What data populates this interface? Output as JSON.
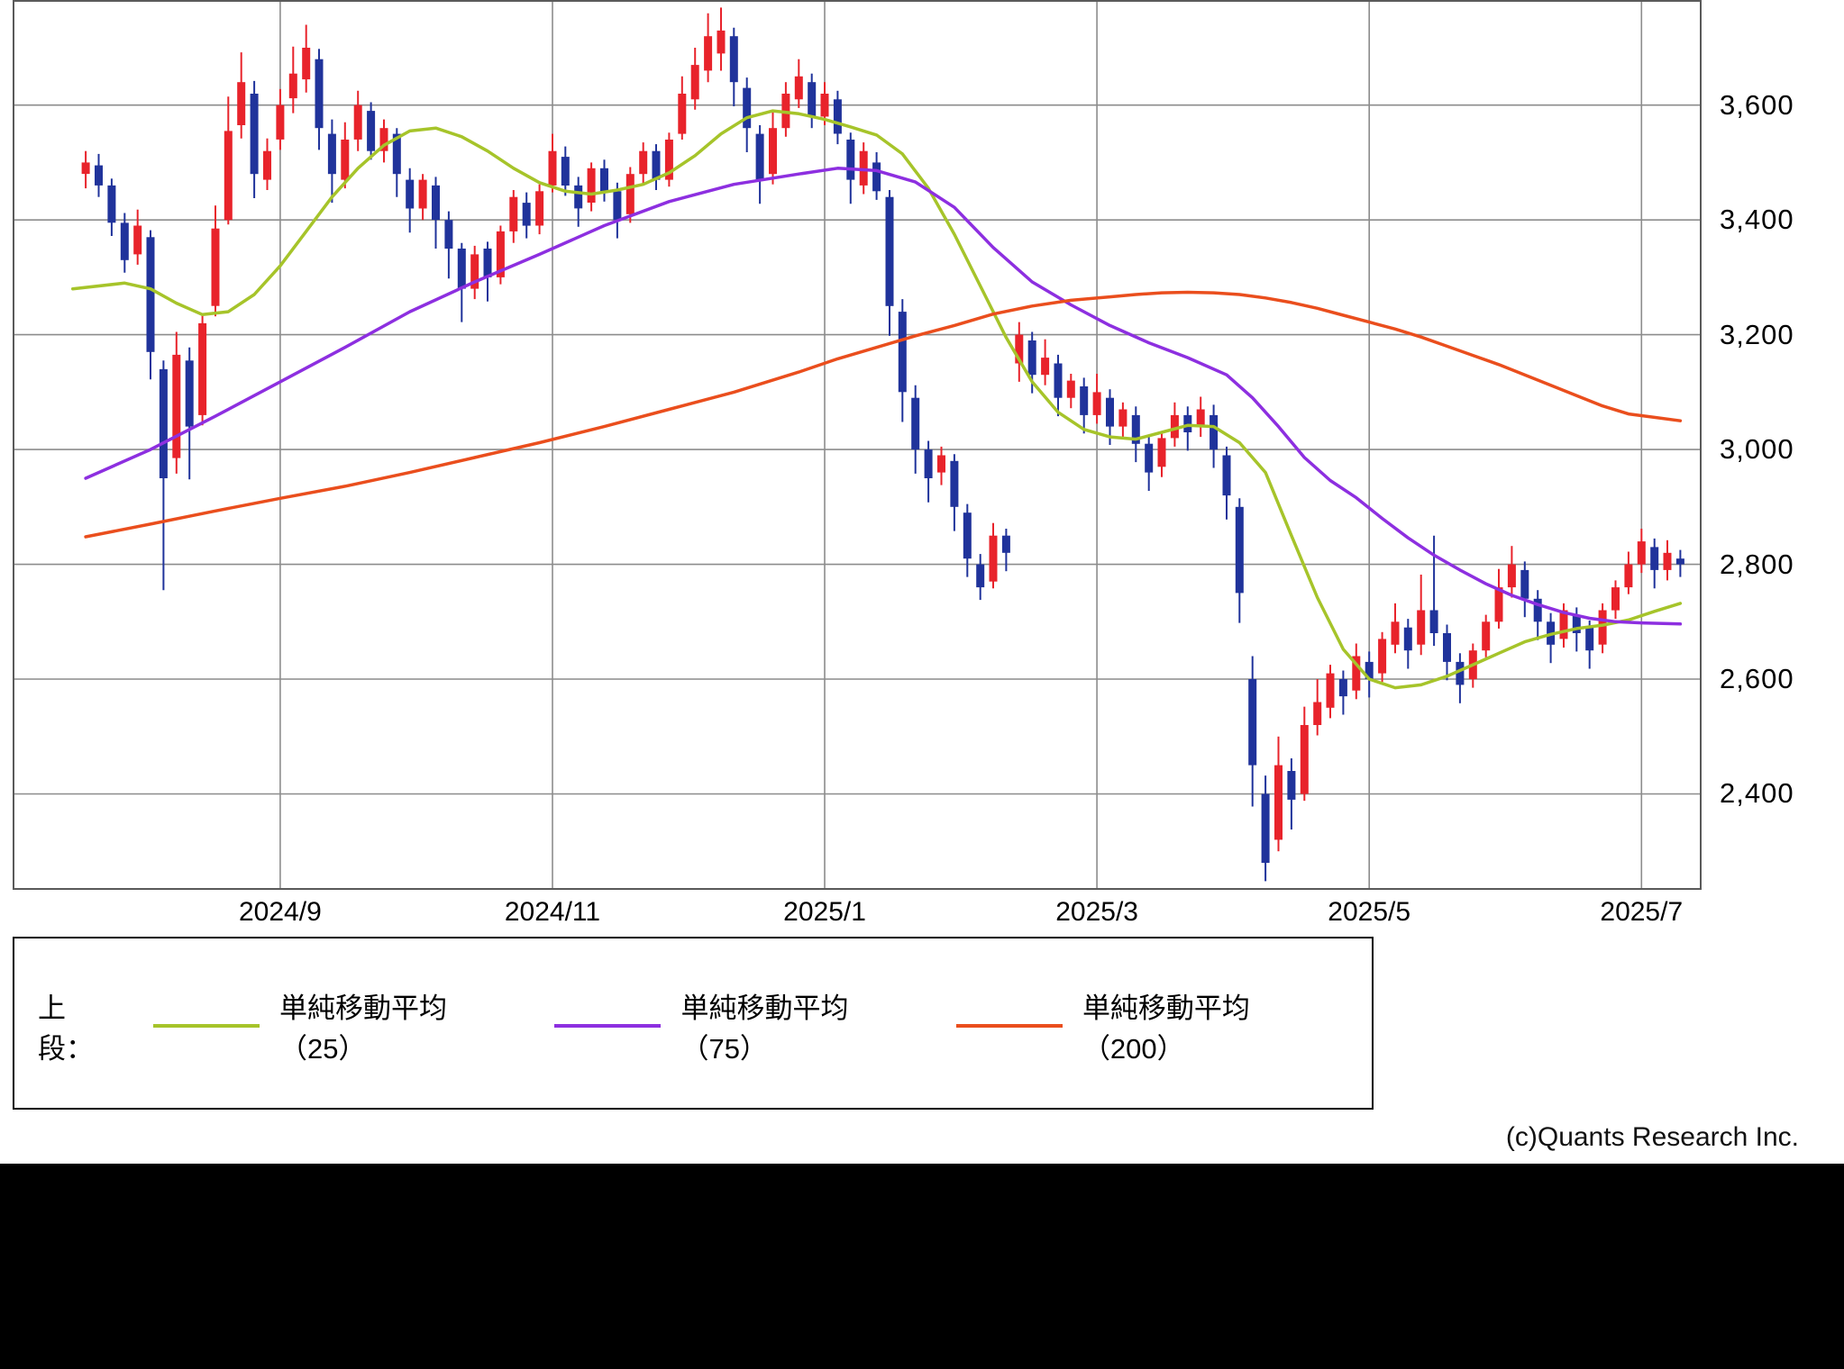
{
  "page": {
    "copyright": "(c)Quants Research Inc."
  },
  "legend": {
    "prefix": "上段："
  },
  "chart_data": {
    "type": "candlestick",
    "title": "",
    "x_axis": {
      "tick_labels": [
        "2024/9",
        "2024/11",
        "2025/1",
        "2025/3",
        "2025/5",
        "2025/7"
      ],
      "tick_indices": [
        20,
        41,
        62,
        83,
        104,
        125
      ]
    },
    "y_axis": {
      "tick_labels": [
        "3,600",
        "3,400",
        "3,200",
        "3,000",
        "2,800",
        "2,600",
        "2,400"
      ],
      "tick_values": [
        3600,
        3400,
        3200,
        3000,
        2800,
        2600,
        2400
      ],
      "range": [
        2236,
        3780
      ]
    },
    "n_slots": 130,
    "start_index": 5,
    "colors": {
      "up": "#e8232b",
      "down": "#20339b",
      "grid": "#8c8c8c",
      "border": "#5a5a5a"
    },
    "candles": [
      [
        3480,
        3520,
        3455,
        3500
      ],
      [
        3495,
        3515,
        3440,
        3460
      ],
      [
        3460,
        3472,
        3372,
        3395
      ],
      [
        3395,
        3412,
        3308,
        3330
      ],
      [
        3340,
        3418,
        3322,
        3390
      ],
      [
        3370,
        3382,
        3122,
        3170
      ],
      [
        3140,
        3155,
        2755,
        2950
      ],
      [
        2985,
        3205,
        2958,
        3165
      ],
      [
        3155,
        3178,
        2948,
        3040
      ],
      [
        3060,
        3235,
        3042,
        3220
      ],
      [
        3250,
        3425,
        3232,
        3385
      ],
      [
        3400,
        3615,
        3392,
        3555
      ],
      [
        3565,
        3692,
        3542,
        3640
      ],
      [
        3620,
        3642,
        3438,
        3480
      ],
      [
        3470,
        3542,
        3452,
        3520
      ],
      [
        3540,
        3628,
        3522,
        3600
      ],
      [
        3612,
        3702,
        3586,
        3655
      ],
      [
        3645,
        3740,
        3622,
        3700
      ],
      [
        3680,
        3698,
        3522,
        3560
      ],
      [
        3550,
        3575,
        3430,
        3480
      ],
      [
        3470,
        3570,
        3455,
        3540
      ],
      [
        3540,
        3625,
        3520,
        3600
      ],
      [
        3590,
        3605,
        3505,
        3520
      ],
      [
        3520,
        3575,
        3500,
        3560
      ],
      [
        3550,
        3560,
        3440,
        3480
      ],
      [
        3470,
        3490,
        3378,
        3420
      ],
      [
        3420,
        3480,
        3400,
        3470
      ],
      [
        3460,
        3475,
        3350,
        3400
      ],
      [
        3400,
        3415,
        3298,
        3350
      ],
      [
        3350,
        3360,
        3222,
        3280
      ],
      [
        3280,
        3355,
        3262,
        3340
      ],
      [
        3350,
        3362,
        3258,
        3300
      ],
      [
        3300,
        3390,
        3288,
        3380
      ],
      [
        3380,
        3452,
        3360,
        3440
      ],
      [
        3430,
        3448,
        3368,
        3390
      ],
      [
        3390,
        3462,
        3375,
        3450
      ],
      [
        3460,
        3550,
        3448,
        3520
      ],
      [
        3510,
        3528,
        3442,
        3460
      ],
      [
        3460,
        3475,
        3388,
        3420
      ],
      [
        3430,
        3500,
        3415,
        3490
      ],
      [
        3490,
        3505,
        3432,
        3450
      ],
      [
        3450,
        3465,
        3368,
        3400
      ],
      [
        3410,
        3492,
        3395,
        3480
      ],
      [
        3480,
        3535,
        3462,
        3520
      ],
      [
        3520,
        3532,
        3452,
        3470
      ],
      [
        3470,
        3552,
        3458,
        3540
      ],
      [
        3550,
        3650,
        3540,
        3620
      ],
      [
        3610,
        3700,
        3592,
        3670
      ],
      [
        3660,
        3760,
        3640,
        3720
      ],
      [
        3690,
        3770,
        3660,
        3730
      ],
      [
        3720,
        3735,
        3598,
        3640
      ],
      [
        3630,
        3648,
        3518,
        3560
      ],
      [
        3550,
        3565,
        3428,
        3470
      ],
      [
        3480,
        3592,
        3462,
        3560
      ],
      [
        3560,
        3640,
        3545,
        3620
      ],
      [
        3610,
        3680,
        3595,
        3650
      ],
      [
        3640,
        3655,
        3560,
        3580
      ],
      [
        3580,
        3640,
        3565,
        3620
      ],
      [
        3610,
        3625,
        3532,
        3550
      ],
      [
        3540,
        3552,
        3428,
        3470
      ],
      [
        3460,
        3535,
        3445,
        3520
      ],
      [
        3500,
        3518,
        3435,
        3450
      ],
      [
        3440,
        3452,
        3198,
        3250
      ],
      [
        3240,
        3262,
        3048,
        3100
      ],
      [
        3090,
        3112,
        2958,
        3000
      ],
      [
        3000,
        3015,
        2908,
        2950
      ],
      [
        2960,
        3005,
        2938,
        2990
      ],
      [
        2980,
        2992,
        2858,
        2900
      ],
      [
        2890,
        2905,
        2778,
        2810
      ],
      [
        2800,
        2818,
        2738,
        2760
      ],
      [
        2770,
        2872,
        2758,
        2850
      ],
      [
        2850,
        2862,
        2788,
        2820
      ],
      [
        3150,
        3222,
        3118,
        3200
      ],
      [
        3190,
        3205,
        3098,
        3130
      ],
      [
        3130,
        3192,
        3112,
        3160
      ],
      [
        3150,
        3165,
        3058,
        3090
      ],
      [
        3090,
        3132,
        3072,
        3120
      ],
      [
        3110,
        3125,
        3028,
        3060
      ],
      [
        3060,
        3132,
        3045,
        3100
      ],
      [
        3090,
        3105,
        3008,
        3040
      ],
      [
        3040,
        3082,
        3022,
        3070
      ],
      [
        3060,
        3075,
        2978,
        3010
      ],
      [
        3010,
        3025,
        2928,
        2960
      ],
      [
        2970,
        3032,
        2952,
        3020
      ],
      [
        3020,
        3082,
        3005,
        3060
      ],
      [
        3060,
        3075,
        2998,
        3030
      ],
      [
        3040,
        3092,
        3022,
        3070
      ],
      [
        3060,
        3078,
        2968,
        3000
      ],
      [
        2990,
        3005,
        2878,
        2920
      ],
      [
        2900,
        2915,
        2698,
        2750
      ],
      [
        2600,
        2640,
        2378,
        2450
      ],
      [
        2400,
        2432,
        2248,
        2280
      ],
      [
        2320,
        2500,
        2300,
        2450
      ],
      [
        2440,
        2462,
        2338,
        2390
      ],
      [
        2400,
        2552,
        2388,
        2520
      ],
      [
        2520,
        2600,
        2502,
        2560
      ],
      [
        2550,
        2625,
        2532,
        2610
      ],
      [
        2600,
        2615,
        2538,
        2570
      ],
      [
        2580,
        2662,
        2565,
        2640
      ],
      [
        2630,
        2648,
        2568,
        2600
      ],
      [
        2610,
        2682,
        2595,
        2670
      ],
      [
        2660,
        2732,
        2645,
        2700
      ],
      [
        2690,
        2705,
        2618,
        2650
      ],
      [
        2660,
        2782,
        2642,
        2720
      ],
      [
        2720,
        2850,
        2658,
        2680
      ],
      [
        2680,
        2695,
        2598,
        2630
      ],
      [
        2630,
        2645,
        2558,
        2590
      ],
      [
        2600,
        2662,
        2585,
        2650
      ],
      [
        2650,
        2712,
        2638,
        2700
      ],
      [
        2700,
        2792,
        2688,
        2760
      ],
      [
        2760,
        2832,
        2742,
        2800
      ],
      [
        2790,
        2805,
        2708,
        2740
      ],
      [
        2740,
        2755,
        2668,
        2700
      ],
      [
        2700,
        2715,
        2628,
        2660
      ],
      [
        2670,
        2732,
        2655,
        2720
      ],
      [
        2710,
        2725,
        2648,
        2680
      ],
      [
        2690,
        2702,
        2618,
        2650
      ],
      [
        2660,
        2732,
        2645,
        2720
      ],
      [
        2720,
        2772,
        2705,
        2760
      ],
      [
        2760,
        2822,
        2748,
        2800
      ],
      [
        2800,
        2862,
        2785,
        2840
      ],
      [
        2830,
        2845,
        2758,
        2790
      ],
      [
        2790,
        2842,
        2772,
        2820
      ],
      [
        2810,
        2825,
        2778,
        2800
      ]
    ],
    "series": [
      {
        "id": "sma25",
        "name": "単純移動平均（25）",
        "color": "#a6c42a",
        "points": [
          [
            4,
            3280
          ],
          [
            8,
            3290
          ],
          [
            10,
            3280
          ],
          [
            12,
            3255
          ],
          [
            14,
            3235
          ],
          [
            16,
            3240
          ],
          [
            18,
            3270
          ],
          [
            20,
            3320
          ],
          [
            22,
            3380
          ],
          [
            24,
            3440
          ],
          [
            26,
            3490
          ],
          [
            28,
            3530
          ],
          [
            30,
            3555
          ],
          [
            32,
            3560
          ],
          [
            34,
            3545
          ],
          [
            36,
            3520
          ],
          [
            38,
            3490
          ],
          [
            40,
            3465
          ],
          [
            42,
            3450
          ],
          [
            44,
            3445
          ],
          [
            46,
            3452
          ],
          [
            48,
            3462
          ],
          [
            50,
            3482
          ],
          [
            52,
            3512
          ],
          [
            54,
            3550
          ],
          [
            56,
            3578
          ],
          [
            58,
            3590
          ],
          [
            60,
            3585
          ],
          [
            62,
            3575
          ],
          [
            64,
            3562
          ],
          [
            66,
            3548
          ],
          [
            68,
            3515
          ],
          [
            70,
            3455
          ],
          [
            72,
            3375
          ],
          [
            74,
            3285
          ],
          [
            76,
            3195
          ],
          [
            78,
            3118
          ],
          [
            80,
            3065
          ],
          [
            82,
            3035
          ],
          [
            84,
            3022
          ],
          [
            86,
            3018
          ],
          [
            88,
            3030
          ],
          [
            90,
            3042
          ],
          [
            92,
            3040
          ],
          [
            94,
            3012
          ],
          [
            96,
            2960
          ],
          [
            98,
            2850
          ],
          [
            100,
            2742
          ],
          [
            102,
            2652
          ],
          [
            104,
            2600
          ],
          [
            106,
            2585
          ],
          [
            108,
            2590
          ],
          [
            110,
            2605
          ],
          [
            112,
            2625
          ],
          [
            114,
            2645
          ],
          [
            116,
            2665
          ],
          [
            118,
            2678
          ],
          [
            120,
            2688
          ],
          [
            122,
            2694
          ],
          [
            124,
            2703
          ],
          [
            126,
            2718
          ],
          [
            128,
            2732
          ]
        ]
      },
      {
        "id": "sma75",
        "name": "単純移動平均（75）",
        "color": "#8d2fe0",
        "points": [
          [
            5,
            2950
          ],
          [
            10,
            3000
          ],
          [
            15,
            3058
          ],
          [
            20,
            3118
          ],
          [
            25,
            3178
          ],
          [
            30,
            3240
          ],
          [
            35,
            3292
          ],
          [
            40,
            3340
          ],
          [
            45,
            3390
          ],
          [
            50,
            3432
          ],
          [
            55,
            3462
          ],
          [
            60,
            3480
          ],
          [
            63,
            3490
          ],
          [
            66,
            3486
          ],
          [
            69,
            3466
          ],
          [
            72,
            3422
          ],
          [
            75,
            3352
          ],
          [
            78,
            3292
          ],
          [
            81,
            3252
          ],
          [
            84,
            3216
          ],
          [
            87,
            3186
          ],
          [
            90,
            3160
          ],
          [
            93,
            3130
          ],
          [
            95,
            3090
          ],
          [
            97,
            3040
          ],
          [
            99,
            2986
          ],
          [
            101,
            2946
          ],
          [
            103,
            2916
          ],
          [
            105,
            2880
          ],
          [
            107,
            2846
          ],
          [
            109,
            2816
          ],
          [
            111,
            2790
          ],
          [
            113,
            2766
          ],
          [
            115,
            2746
          ],
          [
            117,
            2730
          ],
          [
            119,
            2716
          ],
          [
            121,
            2706
          ],
          [
            123,
            2700
          ],
          [
            125,
            2698
          ],
          [
            128,
            2696
          ]
        ]
      },
      {
        "id": "sma200",
        "name": "単純移動平均（200）",
        "color": "#ea4e1d",
        "points": [
          [
            5,
            2848
          ],
          [
            10,
            2870
          ],
          [
            15,
            2893
          ],
          [
            20,
            2915
          ],
          [
            25,
            2936
          ],
          [
            30,
            2960
          ],
          [
            35,
            2986
          ],
          [
            40,
            3012
          ],
          [
            45,
            3040
          ],
          [
            50,
            3070
          ],
          [
            55,
            3100
          ],
          [
            60,
            3135
          ],
          [
            63,
            3158
          ],
          [
            66,
            3178
          ],
          [
            69,
            3198
          ],
          [
            72,
            3216
          ],
          [
            75,
            3236
          ],
          [
            78,
            3250
          ],
          [
            81,
            3260
          ],
          [
            84,
            3266
          ],
          [
            86,
            3270
          ],
          [
            88,
            3273
          ],
          [
            90,
            3274
          ],
          [
            92,
            3273
          ],
          [
            94,
            3270
          ],
          [
            96,
            3264
          ],
          [
            98,
            3256
          ],
          [
            100,
            3246
          ],
          [
            102,
            3234
          ],
          [
            104,
            3222
          ],
          [
            106,
            3210
          ],
          [
            108,
            3196
          ],
          [
            110,
            3180
          ],
          [
            112,
            3164
          ],
          [
            114,
            3148
          ],
          [
            116,
            3130
          ],
          [
            118,
            3112
          ],
          [
            120,
            3094
          ],
          [
            122,
            3076
          ],
          [
            124,
            3062
          ],
          [
            126,
            3056
          ],
          [
            128,
            3050
          ]
        ]
      }
    ]
  }
}
